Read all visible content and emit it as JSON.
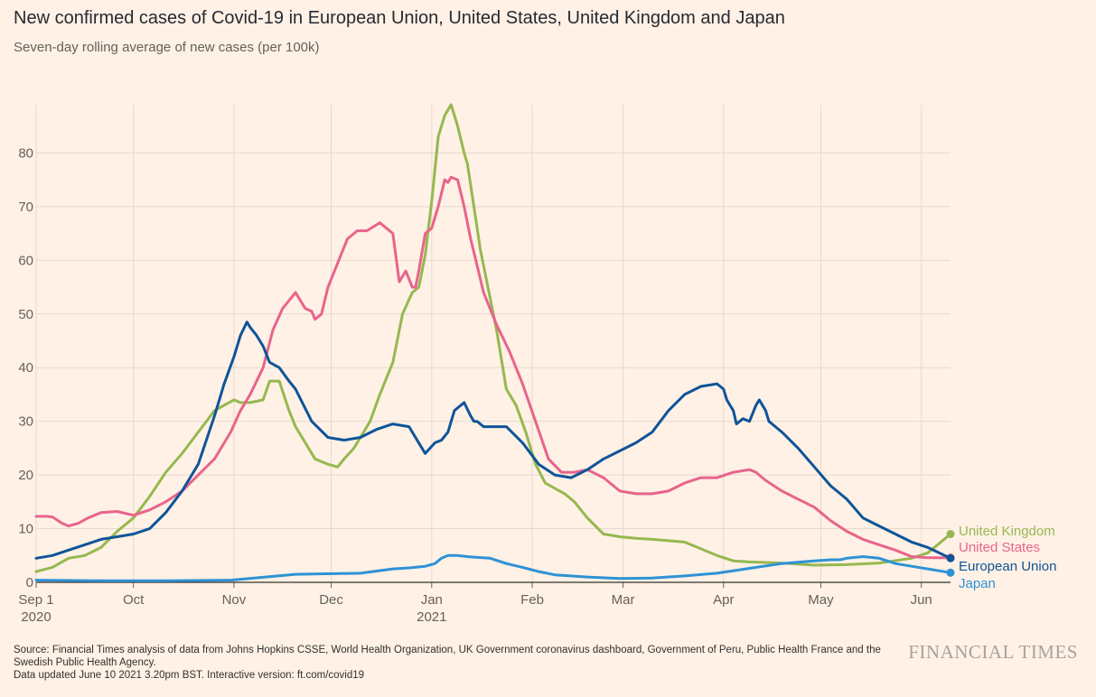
{
  "header": {
    "title": "New confirmed cases of Covid-19 in European Union, United States, United Kingdom and Japan",
    "subtitle": "Seven-day rolling average of new cases (per 100k)"
  },
  "footer": {
    "source": "Source: Financial Times analysis of data from Johns Hopkins CSSE, World Health Organization, UK Government coronavirus dashboard, Government of Peru, Public Health France and the Swedish Public Health Agency.",
    "updated": "Data updated June 10 2021 3.20pm BST. Interactive version: ft.com/covid19",
    "brand": "FINANCIAL TIMES"
  },
  "chart_data": {
    "type": "line",
    "title": "New confirmed cases of Covid-19 in European Union, United States, United Kingdom and Japan",
    "subtitle": "Seven-day rolling average of new cases (per 100k)",
    "xlabel": "",
    "ylabel": "",
    "x_unit": "days since 2020-09-01",
    "xlim": [
      0,
      282
    ],
    "ylim": [
      0,
      90
    ],
    "yticks": [
      0,
      10,
      20,
      30,
      40,
      50,
      60,
      70,
      80
    ],
    "xticks": [
      {
        "x": 0,
        "label": "Sep 1",
        "sub": "2020"
      },
      {
        "x": 30,
        "label": "Oct",
        "sub": ""
      },
      {
        "x": 61,
        "label": "Nov",
        "sub": ""
      },
      {
        "x": 91,
        "label": "Dec",
        "sub": ""
      },
      {
        "x": 122,
        "label": "Jan",
        "sub": "2021"
      },
      {
        "x": 153,
        "label": "Feb",
        "sub": ""
      },
      {
        "x": 181,
        "label": "Mar",
        "sub": ""
      },
      {
        "x": 212,
        "label": "Apr",
        "sub": ""
      },
      {
        "x": 242,
        "label": "May",
        "sub": ""
      },
      {
        "x": 273,
        "label": "Jun",
        "sub": ""
      }
    ],
    "grid": true,
    "legend": "direct labels at line ends",
    "series": [
      {
        "name": "United Kingdom",
        "color": "#96b84f",
        "x": [
          0,
          5,
          10,
          15,
          20,
          25,
          30,
          35,
          40,
          45,
          50,
          55,
          58,
          61,
          63,
          66,
          70,
          72,
          75,
          78,
          80,
          83,
          86,
          90,
          93,
          95,
          98,
          100,
          103,
          106,
          110,
          113,
          116,
          118,
          120,
          122,
          124,
          126,
          128,
          130,
          132,
          133,
          135,
          137,
          139,
          142,
          145,
          148,
          151,
          154,
          157,
          160,
          163,
          166,
          170,
          175,
          180,
          185,
          190,
          200,
          210,
          215,
          220,
          230,
          240,
          250,
          260,
          270,
          275,
          282
        ],
        "y": [
          2,
          2.8,
          4.5,
          5,
          6.5,
          9.5,
          12,
          16,
          20.5,
          24,
          28,
          32,
          33,
          34,
          33.5,
          33.5,
          34,
          37.5,
          37.5,
          32,
          29,
          26,
          23,
          22,
          21.5,
          23,
          25,
          27,
          30,
          35,
          41,
          50,
          54,
          55,
          61,
          71,
          83,
          87,
          89,
          85,
          80,
          78,
          70,
          62,
          56,
          47,
          36,
          33,
          28,
          22,
          18.5,
          17.5,
          16.5,
          15,
          12,
          9,
          8.5,
          8.2,
          8,
          7.5,
          5,
          4,
          3.8,
          3.6,
          3.2,
          3.3,
          3.6,
          4.5,
          5.5,
          9
        ]
      },
      {
        "name": "United States",
        "color": "#e8648c",
        "x": [
          0,
          3,
          5,
          8,
          10,
          13,
          16,
          20,
          25,
          30,
          35,
          40,
          45,
          50,
          55,
          60,
          63,
          66,
          70,
          73,
          76,
          80,
          83,
          85,
          86,
          88,
          90,
          92,
          94,
          96,
          99,
          102,
          106,
          108,
          110,
          112,
          114,
          116,
          117,
          118,
          120,
          122,
          124,
          126,
          127,
          128,
          130,
          132,
          134,
          136,
          138,
          142,
          146,
          150,
          154,
          158,
          162,
          166,
          170,
          175,
          180,
          185,
          190,
          195,
          200,
          205,
          210,
          215,
          220,
          222,
          225,
          230,
          235,
          240,
          245,
          250,
          255,
          260,
          265,
          270,
          275,
          282
        ],
        "y": [
          12.3,
          12.3,
          12.2,
          11,
          10.5,
          11,
          12,
          13,
          13.2,
          12.5,
          13.5,
          15,
          17,
          20,
          23,
          28,
          32,
          35,
          40,
          47,
          51,
          54,
          51,
          50.5,
          49,
          50,
          55,
          58,
          61,
          64,
          65.5,
          65.5,
          67,
          66,
          65,
          56,
          58,
          55,
          55,
          58,
          65,
          66,
          70,
          75,
          74.5,
          75.5,
          75,
          70,
          64,
          59,
          54,
          48,
          43,
          37,
          30,
          23,
          20.5,
          20.5,
          21,
          19.5,
          17,
          16.5,
          16.5,
          17,
          18.5,
          19.5,
          19.5,
          20.5,
          21,
          20.5,
          19,
          17,
          15.5,
          14,
          11.5,
          9.5,
          8,
          7,
          6,
          4.8,
          4.6,
          4.6
        ]
      },
      {
        "name": "European Union",
        "color": "#0f5499",
        "x": [
          0,
          5,
          10,
          15,
          20,
          25,
          30,
          35,
          40,
          45,
          50,
          55,
          58,
          61,
          63,
          65,
          66,
          68,
          70,
          72,
          75,
          78,
          80,
          85,
          90,
          95,
          100,
          105,
          110,
          115,
          120,
          123,
          125,
          127,
          129,
          131,
          132,
          134,
          135,
          136,
          138,
          140,
          145,
          150,
          155,
          160,
          165,
          170,
          175,
          180,
          185,
          190,
          195,
          200,
          205,
          210,
          212,
          213,
          215,
          216,
          218,
          220,
          222,
          223,
          225,
          226,
          228,
          230,
          235,
          240,
          245,
          250,
          255,
          260,
          265,
          270,
          275,
          282
        ],
        "y": [
          4.5,
          5,
          6,
          7,
          8,
          8.5,
          9,
          10,
          13,
          17,
          22,
          31,
          37,
          42,
          46,
          48.5,
          47.5,
          46,
          44,
          41,
          40,
          37.5,
          36,
          30,
          27,
          26.5,
          27,
          28.5,
          29.5,
          29,
          24,
          26,
          26.5,
          28,
          32,
          33,
          33.5,
          31,
          30,
          30,
          29,
          29,
          29,
          26,
          22,
          20,
          19.5,
          21,
          23,
          24.5,
          26,
          28,
          32,
          35,
          36.5,
          37,
          36,
          34,
          32,
          29.5,
          30.5,
          30,
          33,
          34,
          32,
          30,
          29,
          28,
          25,
          21.5,
          18,
          15.5,
          12,
          10.5,
          9,
          7.5,
          6.5,
          4.5
        ]
      },
      {
        "name": "Japan",
        "color": "#2e92d6",
        "x": [
          0,
          20,
          40,
          60,
          80,
          100,
          110,
          115,
          120,
          123,
          125,
          127,
          128,
          130,
          133,
          135,
          140,
          145,
          150,
          155,
          160,
          170,
          180,
          190,
          200,
          210,
          220,
          230,
          240,
          245,
          248,
          250,
          255,
          260,
          265,
          270,
          275,
          282
        ],
        "y": [
          0.4,
          0.3,
          0.3,
          0.4,
          1.5,
          1.7,
          2.5,
          2.7,
          3,
          3.5,
          4.5,
          5,
          5,
          5,
          4.8,
          4.7,
          4.5,
          3.5,
          2.8,
          2,
          1.4,
          1,
          0.7,
          0.8,
          1.2,
          1.7,
          2.6,
          3.5,
          4,
          4.2,
          4.2,
          4.5,
          4.8,
          4.5,
          3.5,
          3,
          2.5,
          1.8
        ]
      }
    ]
  }
}
